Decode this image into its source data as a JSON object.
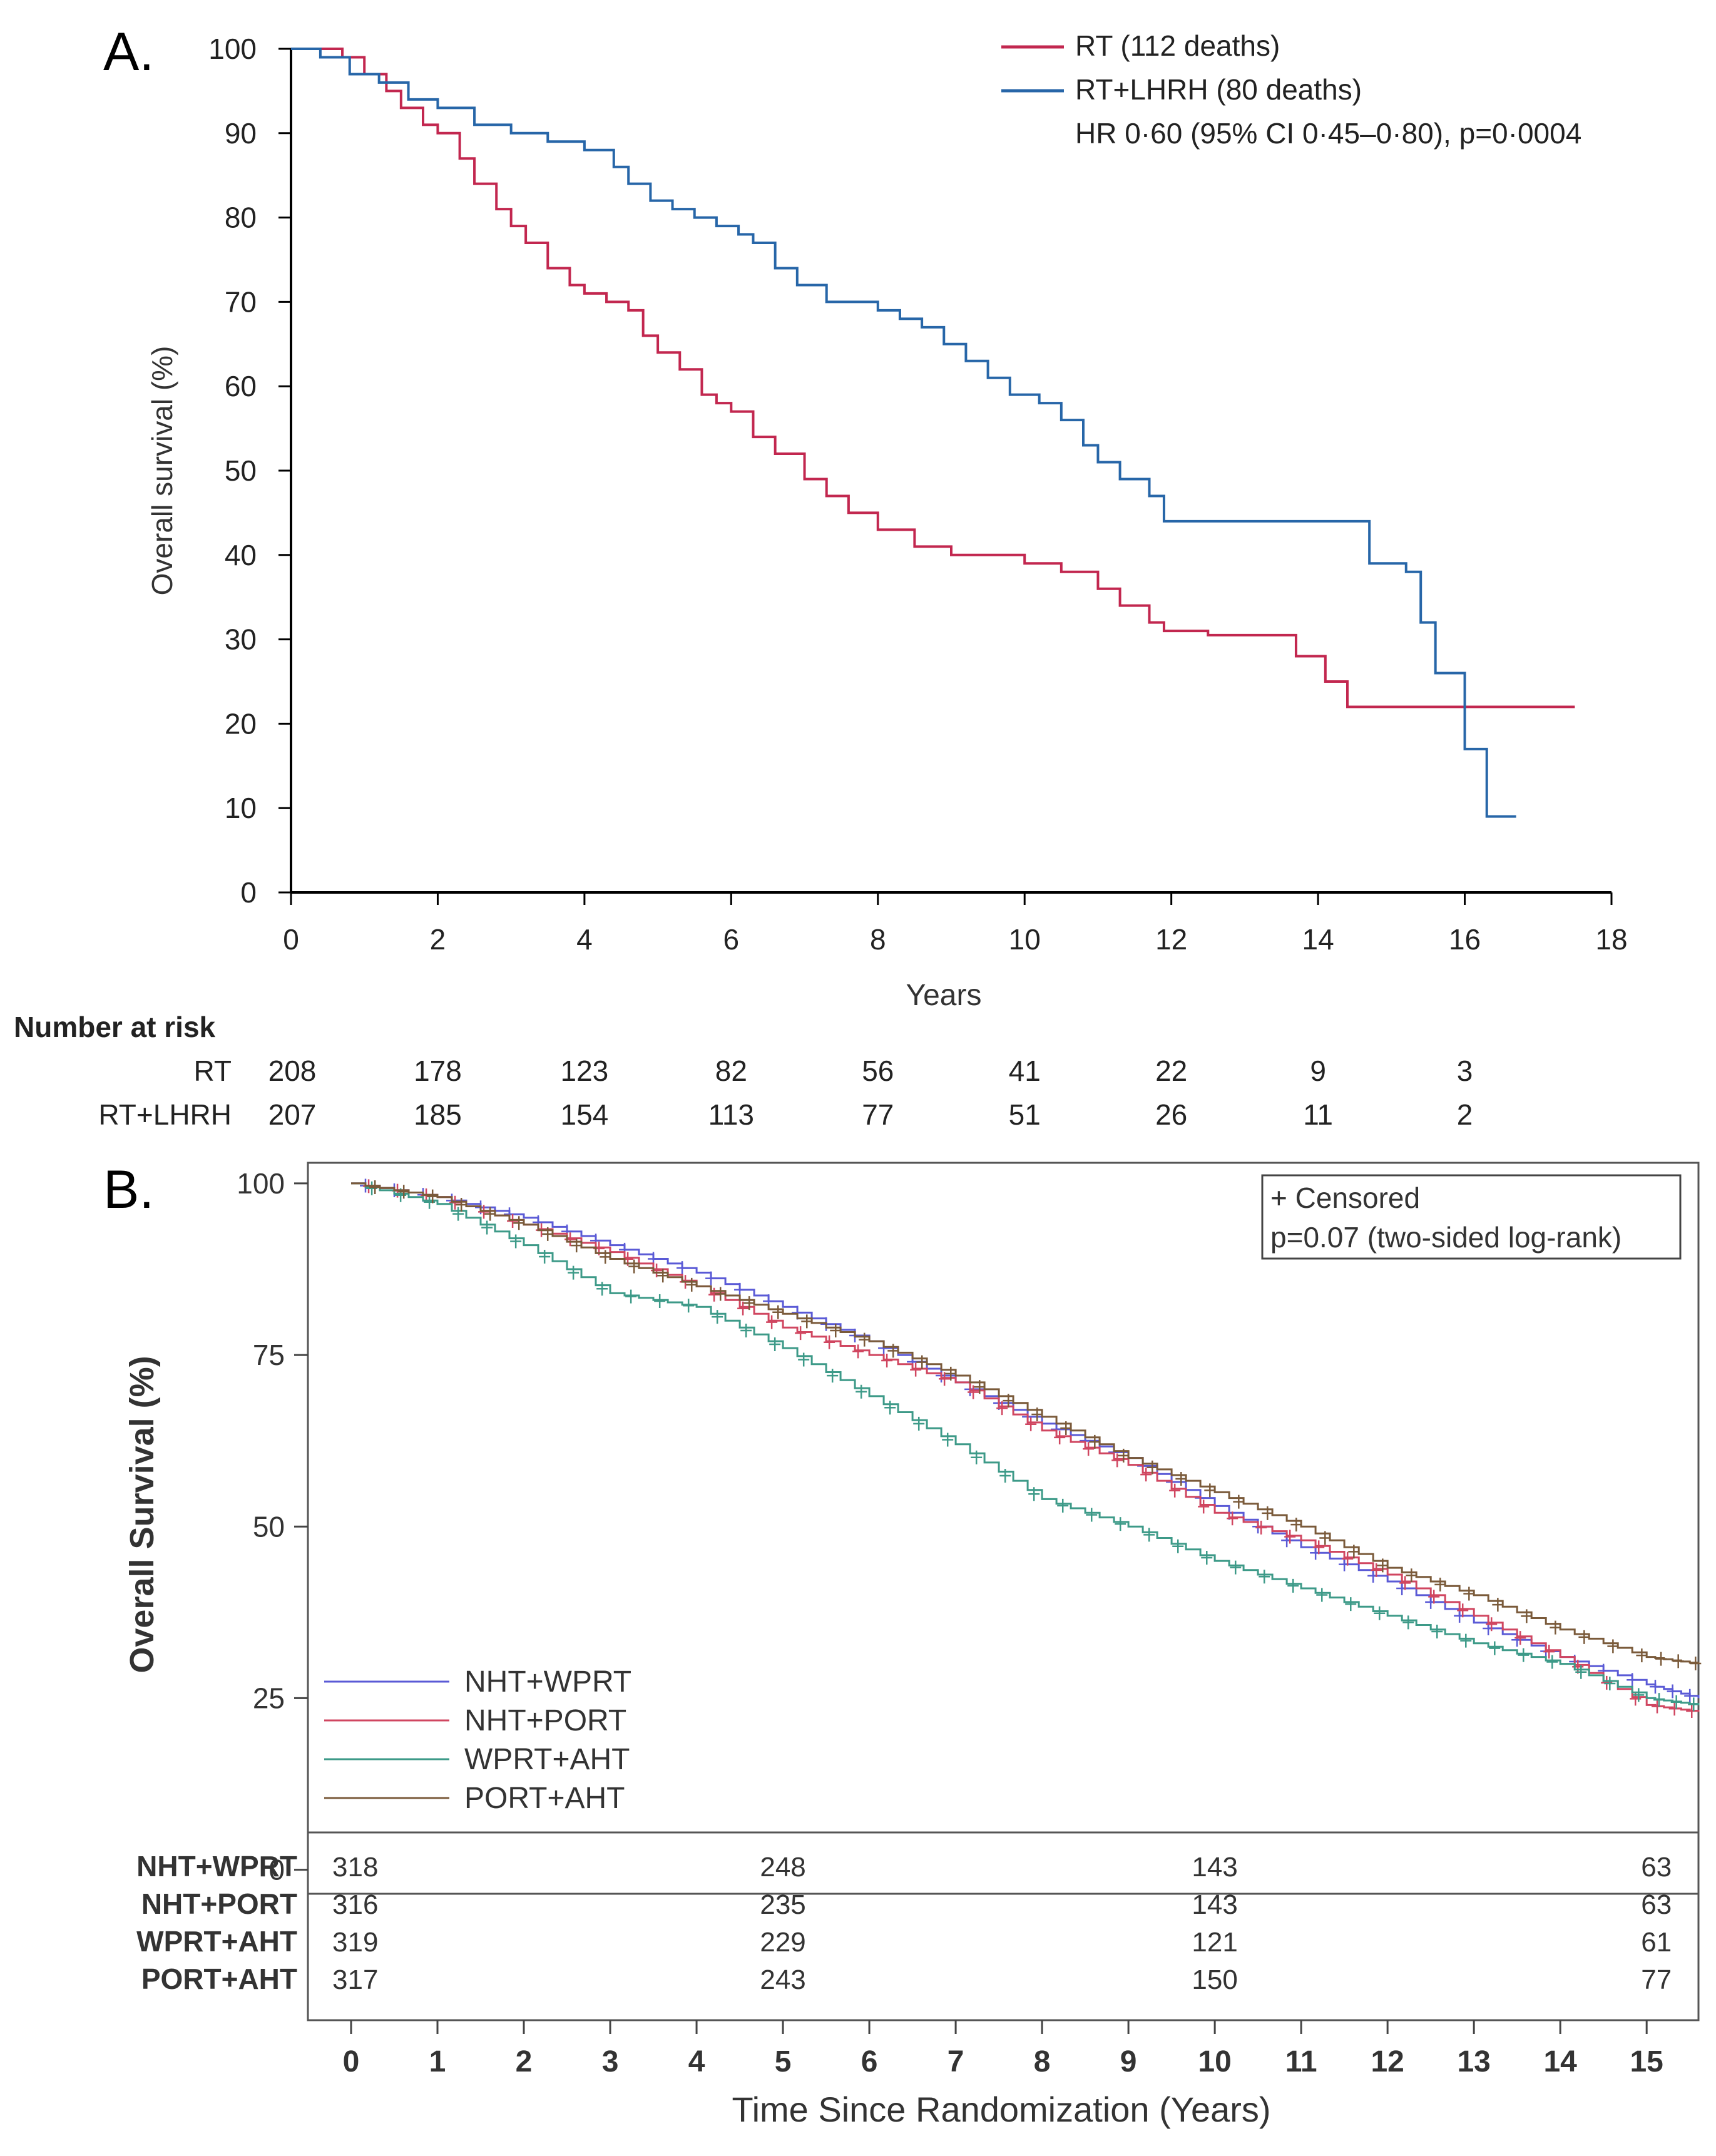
{
  "chart_data": [
    {
      "panel_label": "A.",
      "type": "line",
      "subtype": "kaplan-meier",
      "title": "",
      "xlabel": "Years",
      "ylabel": "Overall survival (%)",
      "xlim": [
        0,
        18
      ],
      "ylim": [
        0,
        100
      ],
      "xticks": [
        "0",
        "2",
        "4",
        "6",
        "8",
        "10",
        "12",
        "14",
        "16",
        "18"
      ],
      "yticks": [
        "0",
        "10",
        "20",
        "30",
        "40",
        "50",
        "60",
        "70",
        "80",
        "90",
        "100"
      ],
      "grid": false,
      "legend_position": "top-right",
      "colors": {
        "RT": "#c2274f",
        "RT+LHRH": "#2766a8"
      },
      "series": [
        {
          "name": "RT (112 deaths)",
          "key": "RT",
          "points": [
            [
              0,
              100
            ],
            [
              0.4,
              100
            ],
            [
              0.7,
              99
            ],
            [
              1.0,
              97
            ],
            [
              1.3,
              95
            ],
            [
              1.5,
              93
            ],
            [
              1.8,
              91
            ],
            [
              2.0,
              90
            ],
            [
              2.3,
              87
            ],
            [
              2.5,
              84
            ],
            [
              2.8,
              81
            ],
            [
              3.0,
              79
            ],
            [
              3.2,
              77
            ],
            [
              3.5,
              74
            ],
            [
              3.8,
              72
            ],
            [
              4.0,
              71
            ],
            [
              4.3,
              70
            ],
            [
              4.6,
              69
            ],
            [
              4.8,
              66
            ],
            [
              5.0,
              64
            ],
            [
              5.3,
              62
            ],
            [
              5.6,
              59
            ],
            [
              5.8,
              58
            ],
            [
              6.0,
              57
            ],
            [
              6.3,
              54
            ],
            [
              6.6,
              52
            ],
            [
              7.0,
              49
            ],
            [
              7.3,
              47
            ],
            [
              7.6,
              45
            ],
            [
              8.0,
              43
            ],
            [
              8.5,
              41
            ],
            [
              9.0,
              40
            ],
            [
              10.0,
              39
            ],
            [
              10.5,
              38
            ],
            [
              11.0,
              36
            ],
            [
              11.3,
              34
            ],
            [
              11.7,
              32
            ],
            [
              11.9,
              31
            ],
            [
              12.5,
              30.5
            ],
            [
              13.6,
              30.5
            ],
            [
              13.7,
              28
            ],
            [
              14.1,
              25
            ],
            [
              14.4,
              22
            ],
            [
              17.5,
              22
            ]
          ]
        },
        {
          "name": "RT+LHRH (80 deaths)",
          "key": "RT+LHRH",
          "points": [
            [
              0,
              100
            ],
            [
              0.4,
              99
            ],
            [
              0.8,
              97
            ],
            [
              1.2,
              96
            ],
            [
              1.6,
              94
            ],
            [
              2.0,
              93
            ],
            [
              2.5,
              91
            ],
            [
              3.0,
              90
            ],
            [
              3.5,
              89
            ],
            [
              4.0,
              88
            ],
            [
              4.4,
              86
            ],
            [
              4.6,
              84
            ],
            [
              4.9,
              82
            ],
            [
              5.2,
              81
            ],
            [
              5.5,
              80
            ],
            [
              5.8,
              79
            ],
            [
              6.1,
              78
            ],
            [
              6.3,
              77
            ],
            [
              6.6,
              74
            ],
            [
              6.9,
              72
            ],
            [
              7.3,
              70
            ],
            [
              7.6,
              70
            ],
            [
              8.0,
              69
            ],
            [
              8.3,
              68
            ],
            [
              8.6,
              67
            ],
            [
              8.9,
              65
            ],
            [
              9.2,
              63
            ],
            [
              9.5,
              61
            ],
            [
              9.8,
              59
            ],
            [
              10.2,
              58
            ],
            [
              10.5,
              56
            ],
            [
              10.8,
              53
            ],
            [
              11.0,
              51
            ],
            [
              11.3,
              49
            ],
            [
              11.7,
              47
            ],
            [
              11.9,
              44
            ],
            [
              12.5,
              44
            ],
            [
              14.6,
              44
            ],
            [
              14.7,
              39
            ],
            [
              15.2,
              38
            ],
            [
              15.4,
              32
            ],
            [
              15.6,
              26
            ],
            [
              15.9,
              26
            ],
            [
              16.0,
              17
            ],
            [
              16.3,
              9
            ],
            [
              16.7,
              9
            ]
          ]
        }
      ],
      "annotations": [
        "RT (112 deaths)",
        "RT+LHRH (80 deaths)",
        "HR 0·60 (95% CI 0·45–0·80), p=0·0004"
      ],
      "risk_table": {
        "title": "Number at risk",
        "times": [
          0,
          2,
          4,
          6,
          8,
          10,
          12,
          14,
          16
        ],
        "rows": [
          {
            "label": "RT",
            "values": [
              "208",
              "178",
              "123",
              "82",
              "56",
              "41",
              "22",
              "9",
              "3"
            ]
          },
          {
            "label": "RT+LHRH",
            "values": [
              "207",
              "185",
              "154",
              "113",
              "77",
              "51",
              "26",
              "11",
              "2"
            ]
          }
        ]
      }
    },
    {
      "panel_label": "B.",
      "type": "line",
      "subtype": "kaplan-meier",
      "title": "",
      "xlabel": "Time Since Randomization (Years)",
      "ylabel": "Overall Survival (%)",
      "xlim": [
        -0.5,
        15.6
      ],
      "ylim": [
        -3.5,
        103
      ],
      "xticks": [
        "0",
        "1",
        "2",
        "3",
        "4",
        "5",
        "6",
        "7",
        "8",
        "9",
        "10",
        "11",
        "12",
        "13",
        "14",
        "15"
      ],
      "yticks": [
        "0",
        "25",
        "50",
        "75",
        "100"
      ],
      "grid": false,
      "legend_position": "bottom-left",
      "info_box": [
        "+ Censored",
        "p=0.07 (two-sided log-rank)"
      ],
      "colors": {
        "NHT+WPRT": "#5a5ad6",
        "NHT+PORT": "#d04660",
        "WPRT+AHT": "#3d9a88",
        "PORT+AHT": "#7a5a3a"
      },
      "series": [
        {
          "name": "NHT+WPRT",
          "points": [
            [
              0,
              100
            ],
            [
              1,
              98
            ],
            [
              2,
              95
            ],
            [
              3,
              91
            ],
            [
              4,
              87
            ],
            [
              5,
              82
            ],
            [
              6,
              77
            ],
            [
              7,
              71
            ],
            [
              8,
              65
            ],
            [
              9,
              60
            ],
            [
              10,
              53
            ],
            [
              11,
              47
            ],
            [
              12,
              42
            ],
            [
              13,
              36
            ],
            [
              14,
              31
            ],
            [
              15,
              27
            ],
            [
              15.6,
              25
            ]
          ]
        },
        {
          "name": "NHT+PORT",
          "points": [
            [
              0,
              100
            ],
            [
              1,
              98
            ],
            [
              2,
              94
            ],
            [
              3,
              90
            ],
            [
              4,
              85
            ],
            [
              5,
              79
            ],
            [
              6,
              75
            ],
            [
              7,
              71
            ],
            [
              8,
              64
            ],
            [
              9,
              59
            ],
            [
              10,
              52
            ],
            [
              11,
              48
            ],
            [
              12,
              43
            ],
            [
              13,
              37
            ],
            [
              14,
              31
            ],
            [
              15,
              24
            ],
            [
              15.6,
              23
            ]
          ]
        },
        {
          "name": "WPRT+AHT",
          "points": [
            [
              0,
              100
            ],
            [
              1,
              97
            ],
            [
              2,
              91
            ],
            [
              3,
              84
            ],
            [
              4,
              82
            ],
            [
              5,
              76
            ],
            [
              6,
              69
            ],
            [
              7,
              62
            ],
            [
              8,
              54
            ],
            [
              9,
              50
            ],
            [
              10,
              45
            ],
            [
              11,
              41
            ],
            [
              12,
              37
            ],
            [
              13,
              33
            ],
            [
              14,
              30
            ],
            [
              15,
              25
            ],
            [
              15.6,
              24
            ]
          ]
        },
        {
          "name": "PORT+AHT",
          "points": [
            [
              0,
              100
            ],
            [
              1,
              98
            ],
            [
              2,
              94
            ],
            [
              3,
              89
            ],
            [
              4,
              85
            ],
            [
              5,
              81
            ],
            [
              6,
              77
            ],
            [
              7,
              72
            ],
            [
              8,
              66
            ],
            [
              9,
              60
            ],
            [
              10,
              55
            ],
            [
              11,
              50
            ],
            [
              12,
              44
            ],
            [
              13,
              40
            ],
            [
              14,
              35
            ],
            [
              15,
              31
            ],
            [
              15.6,
              30
            ]
          ]
        }
      ],
      "risk_table": {
        "times": [
          0,
          5,
          10,
          15
        ],
        "rows": [
          {
            "label": "NHT+WPRT",
            "values": [
              "318",
              "248",
              "143",
              "63"
            ]
          },
          {
            "label": "NHT+PORT",
            "values": [
              "316",
              "235",
              "143",
              "63"
            ]
          },
          {
            "label": "WPRT+AHT",
            "values": [
              "319",
              "229",
              "121",
              "61"
            ]
          },
          {
            "label": "PORT+AHT",
            "values": [
              "317",
              "243",
              "150",
              "77"
            ]
          }
        ]
      }
    }
  ]
}
